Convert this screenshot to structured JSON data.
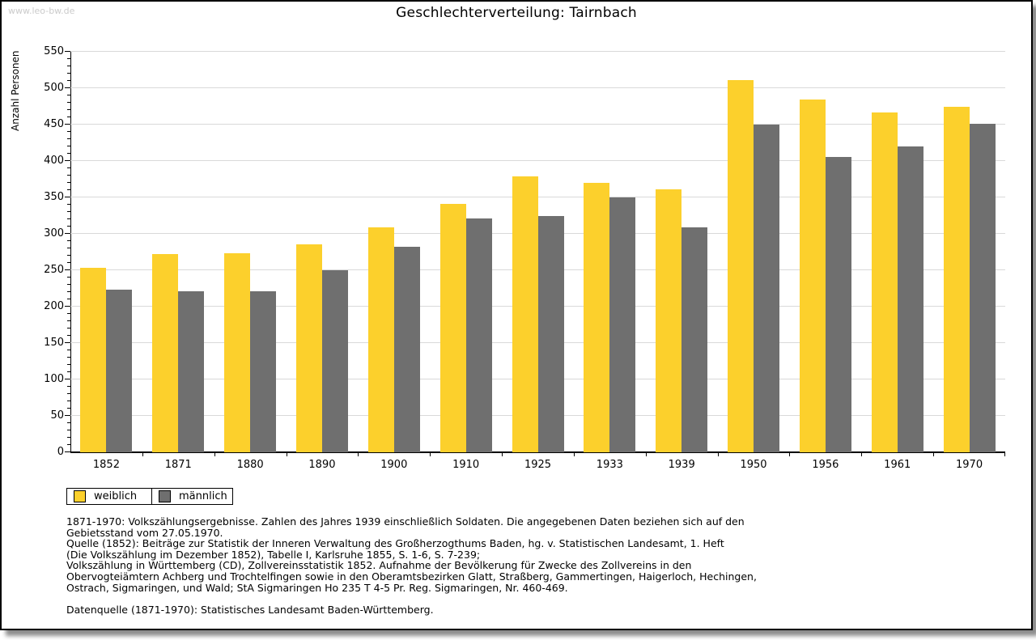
{
  "page": {
    "watermark": "www.leo-bw.de",
    "title": "Geschlechterverteilung: Tairnbach"
  },
  "chart_data": {
    "type": "bar",
    "title": "Geschlechterverteilung: Tairnbach",
    "xlabel": "",
    "ylabel": "Anzahl Personen",
    "ylim": [
      0,
      550
    ],
    "ytick_step": 50,
    "minor_tick_step": 10,
    "grid": true,
    "legend_position": "bottom-left",
    "categories": [
      "1852",
      "1871",
      "1880",
      "1890",
      "1900",
      "1910",
      "1925",
      "1933",
      "1939",
      "1950",
      "1956",
      "1961",
      "1970"
    ],
    "series": [
      {
        "name": "weiblich",
        "color": "#fcd02c",
        "values": [
          253,
          272,
          273,
          286,
          309,
          341,
          379,
          370,
          361,
          511,
          484,
          467,
          475
        ]
      },
      {
        "name": "männlich",
        "color": "#6f6f6f",
        "values": [
          223,
          221,
          221,
          250,
          282,
          321,
          325,
          350,
          309,
          450,
          406,
          420,
          451
        ]
      }
    ]
  },
  "footnotes": {
    "lines": [
      "1871-1970: Volkszählungsergebnisse. Zahlen des Jahres 1939 einschließlich Soldaten. Die angegebenen Daten beziehen sich auf den",
      "Gebietsstand vom 27.05.1970.",
      "Quelle (1852): Beiträge zur Statistik der Inneren Verwaltung des Großherzogthums Baden, hg. v. Statistischen Landesamt, 1. Heft",
      "(Die Volkszählung im Dezember 1852), Tabelle I, Karlsruhe 1855, S. 1-6, S. 7-239;",
      "Volkszählung in Württemberg (CD), Zollvereinsstatistik 1852. Aufnahme der Bevölkerung für Zwecke des Zollvereins in den",
      "Obervogteiämtern Achberg und Trochtelfingen sowie in den Oberamtsbezirken Glatt, Straßberg, Gammertingen, Haigerloch, Hechingen,",
      "Ostrach, Sigmaringen, und Wald; StA Sigmaringen Ho 235 T 4-5 Pr. Reg. Sigmaringen, Nr. 460-469.",
      "",
      "Datenquelle (1871-1970): Statistisches Landesamt Baden-Württemberg."
    ]
  }
}
